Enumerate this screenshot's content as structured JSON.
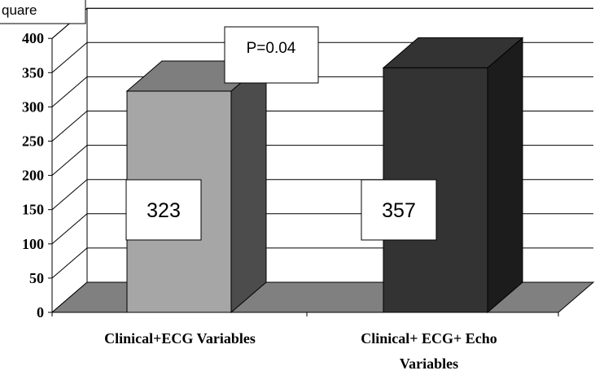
{
  "chart_data": {
    "type": "bar",
    "style": "3d-column",
    "ylabel": "quare",
    "ylim": [
      0,
      400
    ],
    "yticks": [
      0,
      50,
      100,
      150,
      200,
      250,
      300,
      350,
      400
    ],
    "categories": [
      [
        "Clinical+ECG Variables"
      ],
      [
        "Clinical+ ECG+ Echo",
        "Variables"
      ]
    ],
    "values": [
      323,
      357
    ],
    "value_labels": [
      "323",
      "357"
    ],
    "annotation": "P=0.04",
    "grid": true,
    "colors": {
      "bar1_front": "#a6a6a6",
      "bar1_side": "#4c4c4c",
      "bar1_top": "#7e7e7e",
      "bar2_front": "#333333",
      "bar2_side": "#1c1c1c",
      "bar2_top": "#333333",
      "floor": "#808080"
    }
  }
}
